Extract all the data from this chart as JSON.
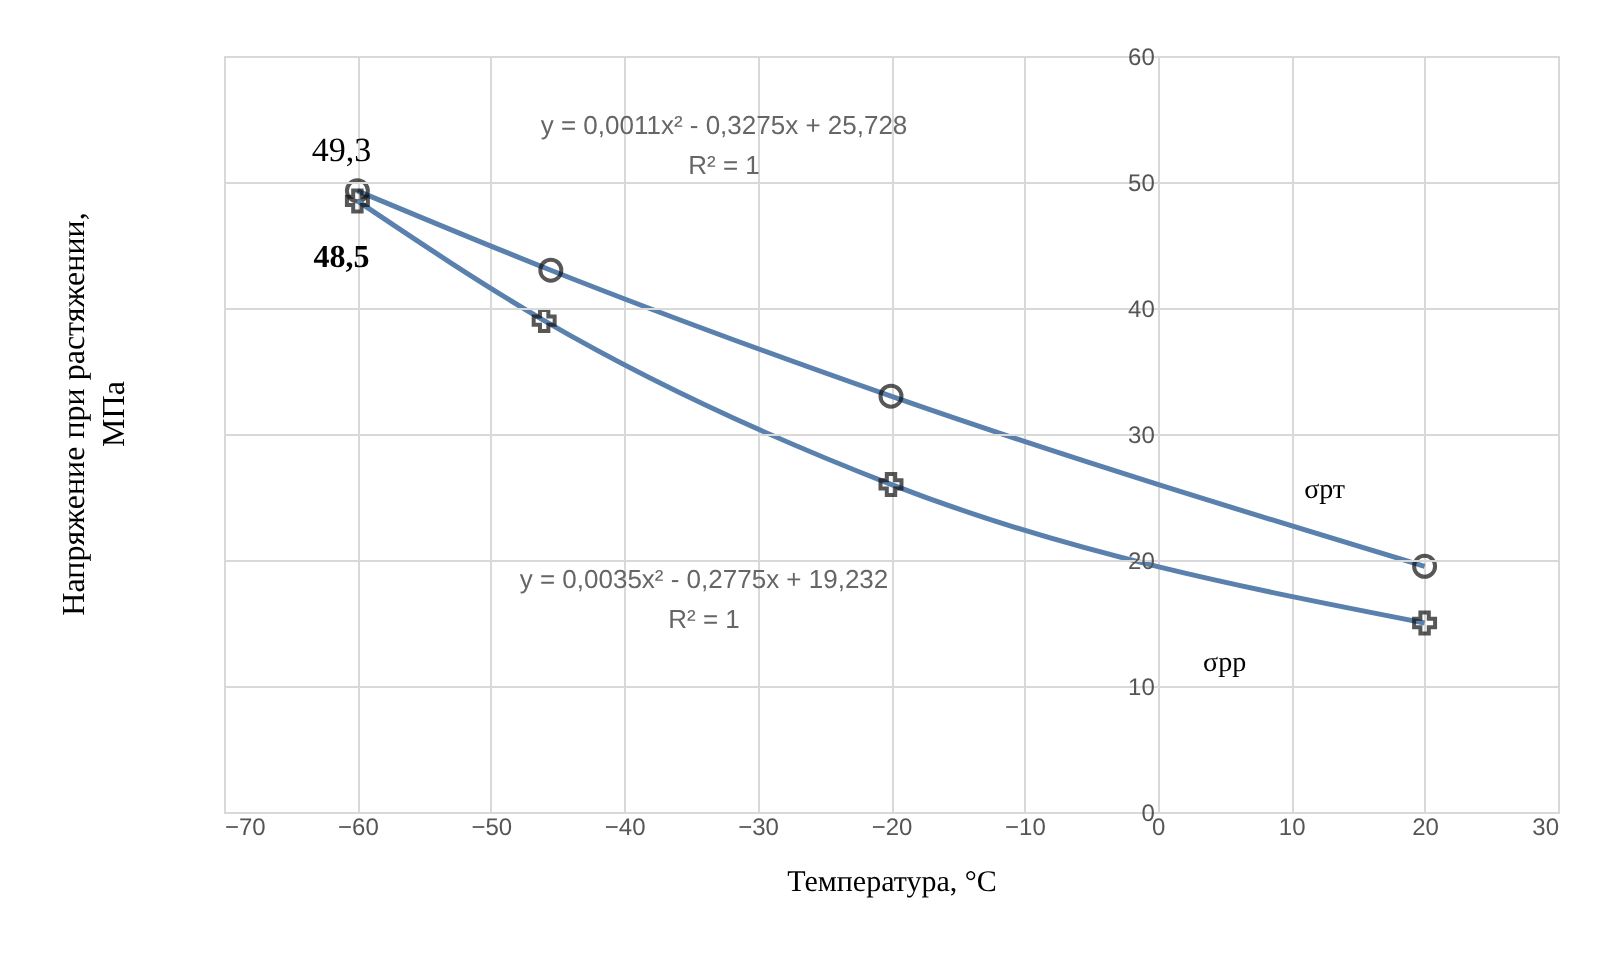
{
  "chart_data": {
    "type": "line",
    "xlabel": "Температура, °С",
    "ylabel": "Напряжение при растяжении, МПа",
    "xlim": [
      -70,
      30
    ],
    "xticks": [
      -70,
      -60,
      -50,
      -40,
      -30,
      -20,
      -10,
      0,
      10,
      20,
      30
    ],
    "ylim": [
      0,
      60
    ],
    "yticks": [
      0,
      10,
      20,
      30,
      40,
      50,
      60
    ],
    "grid": true,
    "series": [
      {
        "name": "σрт",
        "color": "#5a80ad",
        "marker": "circle",
        "x": [
          -60,
          -45.5,
          -20,
          20
        ],
        "values": [
          49.3,
          43,
          33,
          19.5
        ],
        "value_labels": [
          "49,3",
          null,
          null,
          null
        ]
      },
      {
        "name": "σрр",
        "color": "#5a80ad",
        "marker": "cross",
        "x": [
          -60,
          -46,
          -20,
          20
        ],
        "values": [
          48.5,
          39,
          26,
          15
        ],
        "value_labels": [
          "48,5",
          null,
          null,
          null
        ]
      }
    ],
    "annotations": [
      "y = 0,0011x² - 0,3275x + 25,728\nR² = 1",
      "y = 0,0035x² - 0,2775x + 19,232\nR² = 1"
    ]
  }
}
